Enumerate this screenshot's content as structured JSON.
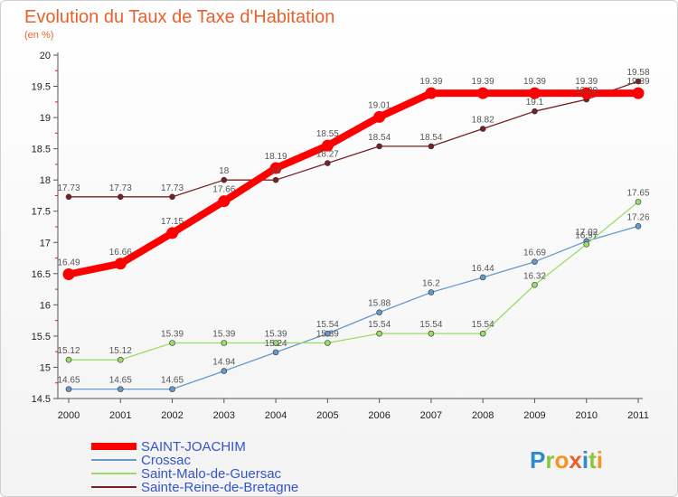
{
  "chart_data": {
    "type": "line",
    "title": "Evolution du Taux de Taxe d'Habitation",
    "subtitle": "(en %)",
    "xlabel": "",
    "ylabel": "",
    "x": [
      "2000",
      "2001",
      "2002",
      "2003",
      "2004",
      "2005",
      "2006",
      "2007",
      "2008",
      "2009",
      "2010",
      "2011"
    ],
    "ylim": [
      14.5,
      20
    ],
    "yticks": [
      "14.5",
      "15",
      "15.5",
      "16",
      "16.5",
      "17",
      "17.5",
      "18",
      "18.5",
      "19",
      "19.5",
      "20"
    ],
    "grid": false,
    "legend_position": "bottom-left",
    "series": [
      {
        "name": "SAINT-JOACHIM",
        "color": "#ff0000",
        "values": [
          16.49,
          16.66,
          17.15,
          17.66,
          18.19,
          18.55,
          19.01,
          19.39,
          19.39,
          19.39,
          19.39,
          19.39
        ],
        "labels": [
          "16.49",
          "16.66",
          "17.15",
          "17.66",
          "18.19",
          "18.55",
          "19.01",
          "19.39",
          "19.39",
          "19.39",
          "19.39",
          "19.39"
        ]
      },
      {
        "name": "Crossac",
        "color": "#6699cc",
        "values": [
          14.65,
          14.65,
          14.65,
          14.94,
          15.24,
          15.54,
          15.88,
          16.2,
          16.44,
          16.69,
          17.02,
          17.26
        ],
        "labels": [
          "14.65",
          "14.65",
          "14.65",
          "14.94",
          "15.24",
          "15.54",
          "15.88",
          "16.2",
          "16.44",
          "16.69",
          "17.02",
          "17.26"
        ]
      },
      {
        "name": "Saint-Malo-de-Guersac",
        "color": "#99dd66",
        "values": [
          15.12,
          15.12,
          15.39,
          15.39,
          15.39,
          15.39,
          15.54,
          15.54,
          15.54,
          16.32,
          16.97,
          17.65
        ],
        "labels": [
          "15.12",
          "15.12",
          "15.39",
          "15.39",
          "15.39",
          "15.39",
          "15.54",
          "15.54",
          "15.54",
          "16.32",
          "16.97",
          "17.65"
        ]
      },
      {
        "name": "Sainte-Reine-de-Bretagne",
        "color": "#772222",
        "values": [
          17.73,
          17.73,
          17.73,
          18,
          18,
          18.27,
          18.54,
          18.54,
          18.82,
          19.1,
          19.29,
          19.58
        ],
        "labels": [
          "17.73",
          "17.73",
          "17.73",
          "18",
          "18",
          "18.27",
          "18.54",
          "18.54",
          "18.82",
          "19.1",
          "19.29",
          "19.58"
        ]
      }
    ]
  },
  "legend": {
    "items": [
      {
        "label": "SAINT-JOACHIM",
        "color": "#ff0000"
      },
      {
        "label": "Crossac",
        "color": "#6699cc"
      },
      {
        "label": "Saint-Malo-de-Guersac",
        "color": "#99dd66"
      },
      {
        "label": "Sainte-Reine-de-Bretagne",
        "color": "#772222"
      }
    ],
    "text_color": "#3355cc"
  },
  "logo": {
    "text": "Proxiti",
    "colors": [
      "#2e8bc9",
      "#8cc63f",
      "#f7931e",
      "#e8612c"
    ]
  }
}
